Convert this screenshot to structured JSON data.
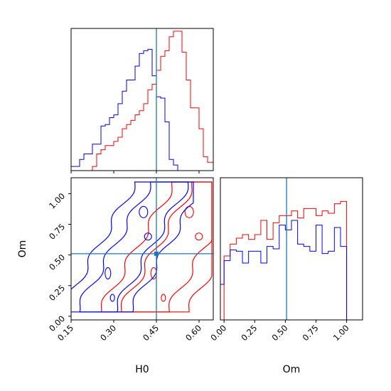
{
  "chart_data": {
    "type": "corner",
    "colors": {
      "red": "#ff0000",
      "blue": "#0000ff",
      "truth": "#1f77b4"
    },
    "truths": {
      "H0": 0.45,
      "Om": 0.51
    },
    "params": [
      {
        "name": "H0",
        "label": "H0",
        "range": [
          0.15,
          0.65
        ],
        "ticks": [
          0.15,
          0.3,
          0.45,
          0.6
        ],
        "tick_labels": [
          "0.15",
          "0.30",
          "0.45",
          "0.60"
        ]
      },
      {
        "name": "Om",
        "label": "Om",
        "range": [
          -0.03,
          1.13
        ],
        "ticks": [
          0.0,
          0.25,
          0.5,
          0.75,
          1.0
        ],
        "tick_labels": [
          "0.00",
          "0.25",
          "0.50",
          "0.75",
          "1.00"
        ]
      }
    ],
    "charts": [
      {
        "panel": "hist-H0",
        "type": "histogram",
        "bin_edges": [
          0.15,
          0.165,
          0.18,
          0.195,
          0.21,
          0.225,
          0.24,
          0.255,
          0.27,
          0.285,
          0.3,
          0.315,
          0.33,
          0.345,
          0.36,
          0.375,
          0.39,
          0.405,
          0.42,
          0.435,
          0.45,
          0.465,
          0.48,
          0.495,
          0.51,
          0.525,
          0.54,
          0.555,
          0.57,
          0.585,
          0.6,
          0.615,
          0.63,
          0.65
        ],
        "ymax": 100,
        "series": [
          {
            "name": "red",
            "color": "#ff0000",
            "counts": [
              0,
              0,
              0,
              0,
              0,
              3,
              12,
              15,
              18,
              18,
              21,
              24,
              30,
              33,
              36,
              40,
              43,
              48,
              58,
              62,
              72,
              82,
              86,
              96,
              100,
              100,
              85,
              65,
              45,
              45,
              30,
              10,
              6
            ]
          },
          {
            "name": "blue",
            "color": "#0000ff",
            "counts": [
              3,
              3,
              8,
              12,
              12,
              19,
              19,
              32,
              33,
              38,
              40,
              48,
              57,
              65,
              65,
              75,
              84,
              86,
              87,
              68,
              53,
              52,
              35,
              8,
              4,
              0,
              0,
              0,
              0,
              0,
              0,
              0,
              0
            ]
          }
        ]
      },
      {
        "panel": "contour-H0-Om",
        "type": "contour",
        "xlim": [
          0.15,
          0.65
        ],
        "ylim": [
          -0.03,
          1.13
        ],
        "outer_region": {
          "cx0": 0.47,
          "cx1": 0.44,
          "slope": 0.25,
          "min_y": 0.035,
          "max_y": 1.095
        },
        "series": [
          {
            "name": "red",
            "color": "#ff0000",
            "center": 0.52,
            "width": 0.07,
            "right_limit": 0.645
          },
          {
            "name": "blue",
            "color": "#0000ff",
            "center": 0.35,
            "width": 0.055,
            "right_limit": 0.58
          }
        ]
      },
      {
        "panel": "hist-Om",
        "type": "histogram",
        "bin_edges": [
          -0.05,
          0.0,
          0.05,
          0.1,
          0.15,
          0.2,
          0.25,
          0.3,
          0.35,
          0.4,
          0.45,
          0.5,
          0.55,
          0.6,
          0.65,
          0.7,
          0.75,
          0.8,
          0.85,
          0.9,
          0.95,
          1.0,
          1.05,
          1.1
        ],
        "ymax": 100,
        "series": [
          {
            "name": "red",
            "color": "#ff0000",
            "counts": [
              0,
              54,
              64,
              69,
              72,
              68,
              72,
              84,
              68,
              82,
              88,
              88,
              92,
              86,
              94,
              94,
              88,
              92,
              90,
              98,
              100,
              0,
              0
            ]
          },
          {
            "name": "blue",
            "color": "#0000ff",
            "counts": [
              30,
              50,
              59,
              58,
              48,
              58,
              58,
              48,
              62,
              60,
              80,
              76,
              84,
              64,
              62,
              58,
              80,
              56,
              58,
              78,
              62,
              0,
              0
            ]
          }
        ]
      }
    ]
  }
}
